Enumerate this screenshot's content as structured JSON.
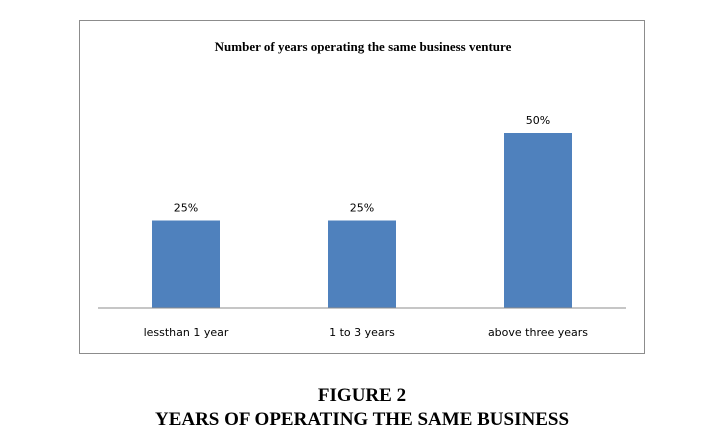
{
  "chart_data": {
    "type": "bar",
    "title": "Number of years operating the same business venture",
    "categories": [
      "lessthan 1 year",
      "1 to 3 years",
      "above three years"
    ],
    "values": [
      25,
      25,
      50
    ],
    "value_labels": [
      "25%",
      "25%",
      "50%"
    ],
    "unit": "%",
    "xlabel": "",
    "ylabel": "",
    "ylim": [
      0,
      50
    ],
    "grid": false,
    "legend": "none",
    "bar_color": "#4F81BD"
  },
  "caption": {
    "figure_label": "FIGURE 2",
    "figure_title": "YEARS OF OPERATING THE SAME BUSINESS"
  }
}
